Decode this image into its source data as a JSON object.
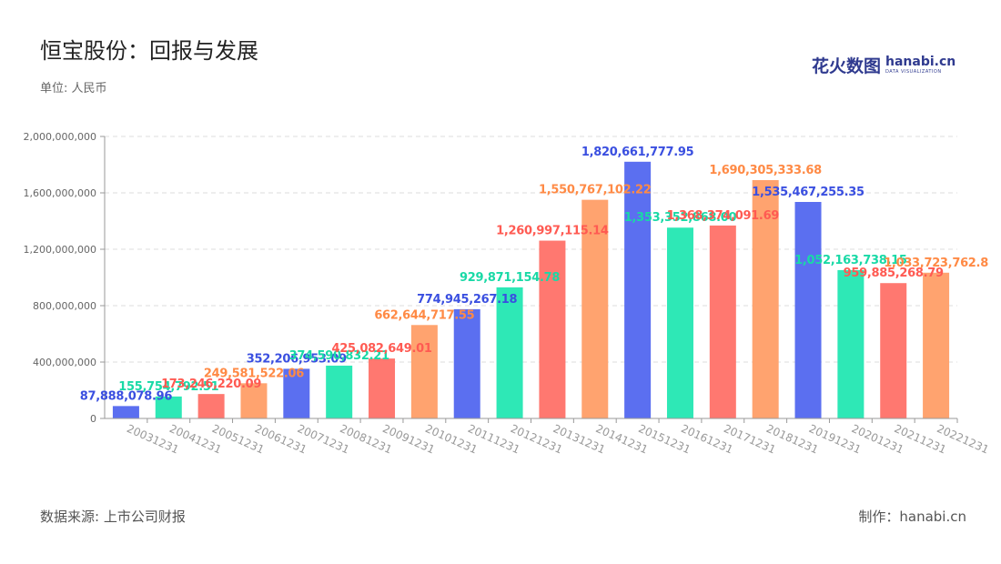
{
  "header": {
    "title": "恒宝股份：回报与发展",
    "unit": "单位: 人民币"
  },
  "logo": {
    "cn": "花火数图",
    "en": "hanabi.cn",
    "sub": "DATA VISUALIZATION"
  },
  "footer": {
    "source": "数据来源: 上市公司财报",
    "credit": "制作：hanabi.cn"
  },
  "colors": [
    "#5b6ff0",
    "#2ee8b6",
    "#ff7870",
    "#ffa36f"
  ],
  "chart_data": {
    "type": "bar",
    "ylim": [
      0,
      2000000000
    ],
    "yticks": [
      0,
      400000000,
      800000000,
      1200000000,
      1600000000,
      2000000000
    ],
    "ytick_labels": [
      "0",
      "400,000,000",
      "800,000,000",
      "1,200,000,000",
      "1,600,000,000",
      "2,000,000,000"
    ],
    "grid": true,
    "categories": [
      "20031231",
      "20041231",
      "20051231",
      "20061231",
      "20071231",
      "20081231",
      "20091231",
      "20101231",
      "20111231",
      "20121231",
      "20131231",
      "20141231",
      "20151231",
      "20161231",
      "20171231",
      "20181231",
      "20191231",
      "20201231",
      "20211231",
      "20221231"
    ],
    "values": [
      87888078.96,
      155754792.51,
      173246220.09,
      249581522.06,
      352206953.09,
      374590832.21,
      425082649.01,
      662644717.55,
      774945267.18,
      929871154.78,
      1260997115.14,
      1550767102.22,
      1820661777.95,
      1353352868.0,
      1368374091.69,
      1690305333.68,
      1535467255.35,
      1052163738.15,
      959885268.79,
      1033723762.8
    ],
    "value_labels": [
      "87,888,078.96",
      "155,754,792.51",
      "173,246,220.09",
      "249,581,522.06",
      "352,206,953.09",
      "374,590,832.21",
      "425,082,649.01",
      "662,644,717.55",
      "774,945,267.18",
      "929,871,154.78",
      "1,260,997,115.14",
      "1,550,767,102.22",
      "1,820,661,777.95",
      "1,353,352,868.00",
      "1,368,374,091.69",
      "1,690,305,333.68",
      "1,535,467,255.35",
      "1,052,163,738.15",
      "959,885,268.79",
      "1,033,723,762.8"
    ]
  }
}
